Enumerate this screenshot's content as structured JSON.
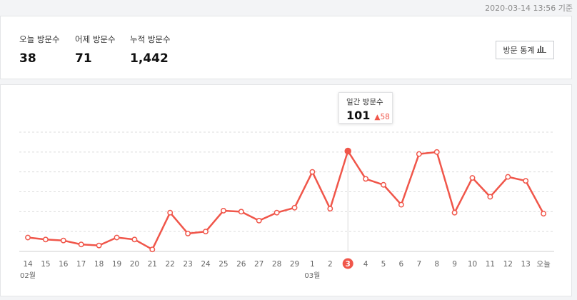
{
  "header": {
    "timestamp": "2020-03-14 13:56 기준"
  },
  "stats": [
    {
      "label": "오늘 방문수",
      "value": "38"
    },
    {
      "label": "어제 방문수",
      "value": "71"
    },
    {
      "label": "누적 방문수",
      "value": "1,442"
    }
  ],
  "stats_button": {
    "label": "방문 통계",
    "icon": "bar-chart-icon"
  },
  "tooltip": {
    "label": "일간 방문수",
    "value": "101",
    "delta": "58",
    "delta_icon": "triangle-up-icon"
  },
  "colors": {
    "accent": "#f0564a",
    "grid": "#dcdcdc",
    "axis": "#cfcfcf",
    "tick": "#666666"
  },
  "chart_data": {
    "type": "line",
    "x": [
      "14",
      "15",
      "16",
      "17",
      "18",
      "19",
      "20",
      "21",
      "22",
      "23",
      "24",
      "25",
      "26",
      "27",
      "28",
      "29",
      "1",
      "2",
      "3",
      "4",
      "5",
      "6",
      "7",
      "8",
      "9",
      "10",
      "11",
      "12",
      "13",
      "오늘"
    ],
    "month_labels": [
      {
        "at": "14",
        "label": "02월"
      },
      {
        "at": "1",
        "label": "03월"
      }
    ],
    "series": [
      {
        "values": [
          14,
          12,
          11,
          7,
          6,
          14,
          12,
          2,
          39,
          18,
          20,
          41,
          40,
          31,
          39,
          44,
          80,
          43,
          101,
          73,
          67,
          47,
          98,
          100,
          39,
          74,
          55,
          75,
          71,
          38
        ]
      }
    ],
    "highlight": {
      "x": "3",
      "value": 101
    },
    "ylim": [
      0,
      120
    ],
    "grid": true
  }
}
